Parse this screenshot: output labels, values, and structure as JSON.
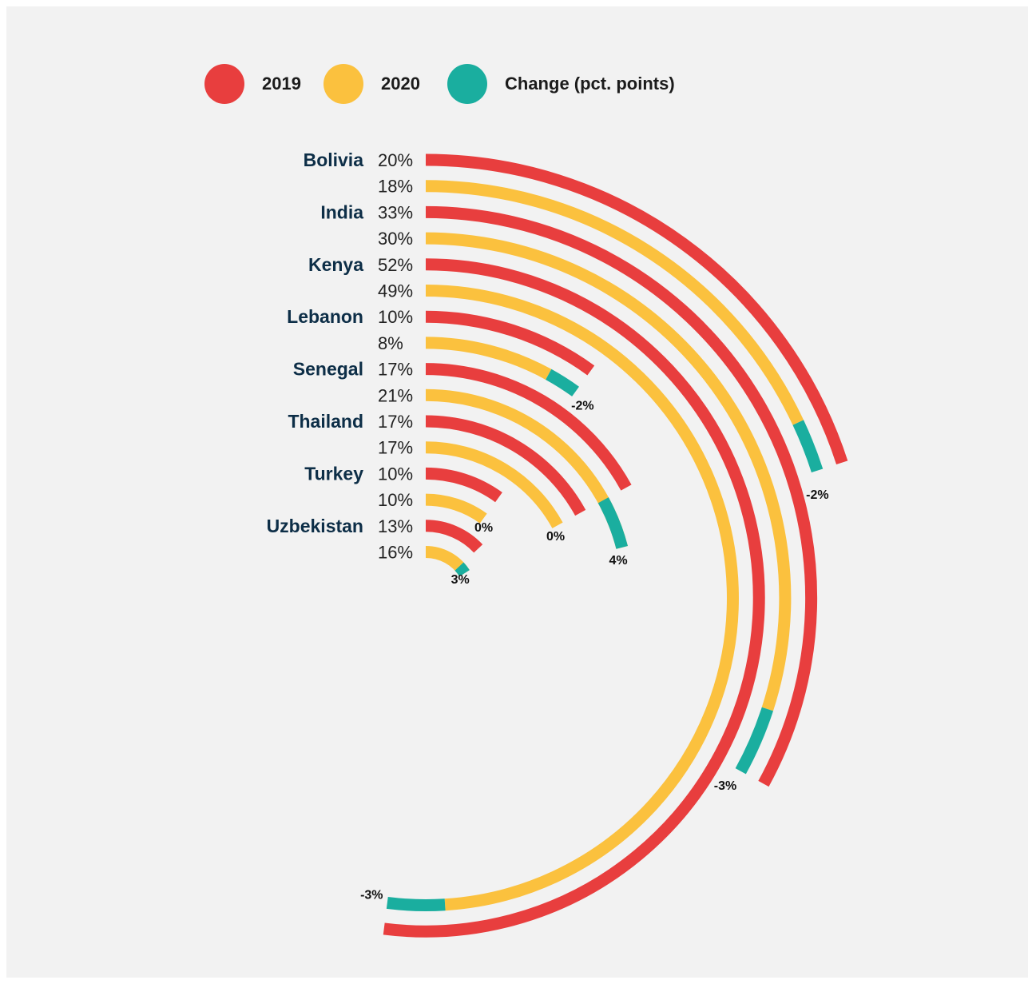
{
  "colors": {
    "y2019": "#e83e3e",
    "y2020": "#fbc13e",
    "change": "#1aae9f",
    "background": "#f2f2f2"
  },
  "legend": [
    {
      "label": "2019",
      "color": "#e83e3e"
    },
    {
      "label": "2020",
      "color": "#fbc13e"
    },
    {
      "label": "Change (pct. points)",
      "color": "#1aae9f"
    }
  ],
  "chart_data": {
    "type": "radial-bar",
    "full_scale_percent": 100,
    "series": [
      {
        "name": "2019",
        "values": [
          "20%",
          "33%",
          "52%",
          "10%",
          "17%",
          "17%",
          "10%",
          "13%"
        ]
      },
      {
        "name": "2020",
        "values": [
          "18%",
          "30%",
          "49%",
          "8%",
          "21%",
          "17%",
          "10%",
          "16%"
        ]
      },
      {
        "name": "Change (pct. points)",
        "values": [
          "-2%",
          "-3%",
          "-3%",
          "-2%",
          "4%",
          "0%",
          "0%",
          "3%"
        ]
      }
    ],
    "rows": [
      {
        "country": "Bolivia",
        "v2019": 20,
        "v2020": 18,
        "label2019": "20%",
        "label2020": "18%",
        "change": -2,
        "change_label": "-2%"
      },
      {
        "country": "India",
        "v2019": 33,
        "v2020": 30,
        "label2019": "33%",
        "label2020": "30%",
        "change": -3,
        "change_label": "-3%"
      },
      {
        "country": "Kenya",
        "v2019": 52,
        "v2020": 49,
        "label2019": "52%",
        "label2020": "49%",
        "change": -3,
        "change_label": "-3%"
      },
      {
        "country": "Lebanon",
        "v2019": 10,
        "v2020": 8,
        "label2019": "10%",
        "label2020": "8%",
        "change": -2,
        "change_label": "-2%"
      },
      {
        "country": "Senegal",
        "v2019": 17,
        "v2020": 21,
        "label2019": "17%",
        "label2020": "21%",
        "change": 4,
        "change_label": "4%"
      },
      {
        "country": "Thailand",
        "v2019": 17,
        "v2020": 17,
        "label2019": "17%",
        "label2020": "17%",
        "change": 0,
        "change_label": "0%"
      },
      {
        "country": "Turkey",
        "v2019": 10,
        "v2020": 10,
        "label2019": "10%",
        "label2020": "10%",
        "change": 0,
        "change_label": "0%"
      },
      {
        "country": "Uzbekistan",
        "v2019": 13,
        "v2020": 16,
        "label2019": "13%",
        "label2020": "16%",
        "change": 3,
        "change_label": "3%"
      }
    ]
  }
}
